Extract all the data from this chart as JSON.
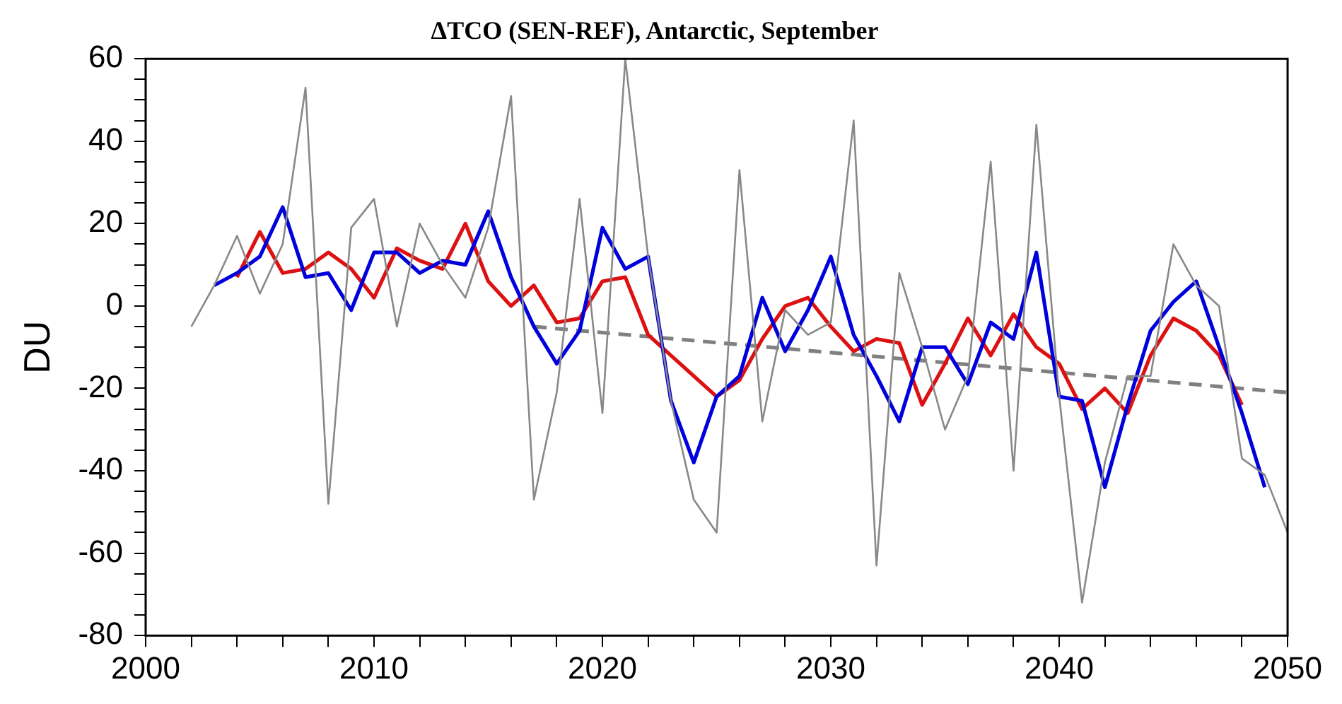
{
  "chart_data": {
    "type": "line",
    "title": "ΔTCO (SEN-REF), Antarctic, September",
    "ylabel": "DU",
    "xlim": [
      2000,
      2050
    ],
    "xticks": [
      2000,
      {
        "value": 2002,
        "label": null
      },
      {
        "value": 2004,
        "label": null
      },
      {
        "value": 2006,
        "label": null
      },
      {
        "value": 2008,
        "label": null
      },
      2010,
      {
        "value": 2012,
        "label": null
      },
      {
        "value": 2014,
        "label": null
      },
      {
        "value": 2016,
        "label": null
      },
      {
        "value": 2018,
        "label": null
      },
      2020,
      {
        "value": 2022,
        "label": null
      },
      {
        "value": 2024,
        "label": null
      },
      {
        "value": 2026,
        "label": null
      },
      {
        "value": 2028,
        "label": null
      },
      2030,
      {
        "value": 2032,
        "label": null
      },
      {
        "value": 2034,
        "label": null
      },
      {
        "value": 2036,
        "label": null
      },
      {
        "value": 2038,
        "label": null
      },
      2040,
      {
        "value": 2042,
        "label": null
      },
      {
        "value": 2044,
        "label": null
      },
      {
        "value": 2046,
        "label": null
      },
      {
        "value": 2048,
        "label": null
      },
      2050
    ],
    "ylim": [
      -80,
      60
    ],
    "yticks": [
      -80,
      {
        "value": -75,
        "label": null
      },
      {
        "value": -70,
        "label": null
      },
      {
        "value": -65,
        "label": null
      },
      -60,
      {
        "value": -55,
        "label": null
      },
      {
        "value": -50,
        "label": null
      },
      {
        "value": -45,
        "label": null
      },
      -40,
      {
        "value": -35,
        "label": null
      },
      {
        "value": -30,
        "label": null
      },
      {
        "value": -25,
        "label": null
      },
      -20,
      {
        "value": -15,
        "label": null
      },
      {
        "value": -10,
        "label": null
      },
      {
        "value": -5,
        "label": null
      },
      0,
      {
        "value": 5,
        "label": null
      },
      {
        "value": 10,
        "label": null
      },
      {
        "value": 15,
        "label": null
      },
      20,
      {
        "value": 25,
        "label": null
      },
      {
        "value": 30,
        "label": null
      },
      {
        "value": 35,
        "label": null
      },
      40,
      {
        "value": 45,
        "label": null
      },
      {
        "value": 50,
        "label": null
      },
      {
        "value": 55,
        "label": null
      },
      60
    ],
    "grid": false,
    "legend": false,
    "marker": "none",
    "series": [
      {
        "color": "#888888",
        "x": [
          2002,
          2003,
          2004,
          2005,
          2006,
          2007,
          2008,
          2009,
          2010,
          2011,
          2012,
          2013,
          2014,
          2015,
          2016,
          2017,
          2018,
          2019,
          2020,
          2021,
          2022,
          2023,
          2024,
          2025,
          2026,
          2027,
          2028,
          2029,
          2030,
          2031,
          2032,
          2033,
          2034,
          2035,
          2036,
          2037,
          2038,
          2039,
          2040,
          2041,
          2042,
          2043,
          2044,
          2045,
          2046,
          2047,
          2048,
          2049,
          2050
        ],
        "values": [
          -5,
          5,
          17,
          3,
          15,
          53,
          -48,
          19,
          26,
          -5,
          20,
          10,
          2,
          19,
          51,
          -47,
          -21,
          26,
          -26,
          60,
          12,
          -23,
          -47,
          -55,
          33,
          -28,
          -1,
          -7,
          -4,
          45,
          -63,
          8,
          -10,
          -30,
          -17,
          35,
          -40,
          44,
          -22,
          -72,
          -38,
          -17,
          -17,
          15,
          5,
          0,
          -37,
          -41,
          -55
        ]
      },
      {
        "color": "#0000dd",
        "x": [
          2003,
          2004,
          2005,
          2006,
          2007,
          2008,
          2009,
          2010,
          2011,
          2012,
          2013,
          2014,
          2015,
          2016,
          2017,
          2018,
          2019,
          2020,
          2021,
          2022,
          2023,
          2024,
          2025,
          2026,
          2027,
          2028,
          2029,
          2030,
          2031,
          2032,
          2033,
          2034,
          2035,
          2036,
          2037,
          2038,
          2039,
          2040,
          2041,
          2042,
          2043,
          2044,
          2045,
          2046,
          2047,
          2048,
          2049
        ],
        "values": [
          5,
          8,
          12,
          24,
          7,
          8,
          -1,
          13,
          13,
          8,
          11,
          10,
          23,
          7,
          -5,
          -14,
          -6,
          19,
          9,
          12,
          -23,
          -38,
          -22,
          -17,
          2,
          -11,
          -1,
          12,
          -7,
          -17,
          -28,
          -10,
          -10,
          -19,
          -4,
          -8,
          13,
          -22,
          -23,
          -44,
          -24,
          -6,
          1,
          6,
          -10,
          -26,
          -44
        ]
      },
      {
        "color": "#dd1111",
        "x": [
          2004,
          2005,
          2006,
          2007,
          2008,
          2009,
          2010,
          2011,
          2012,
          2013,
          2014,
          2015,
          2016,
          2017,
          2018,
          2019,
          2020,
          2021,
          2022,
          2023,
          2024,
          2025,
          2026,
          2027,
          2028,
          2029,
          2030,
          2031,
          2032,
          2033,
          2034,
          2035,
          2036,
          2037,
          2038,
          2039,
          2040,
          2041,
          2042,
          2043,
          2044,
          2045,
          2046,
          2047,
          2048
        ],
        "values": [
          7,
          18,
          8,
          9,
          13,
          9,
          2,
          14,
          11,
          9,
          20,
          6,
          0,
          5,
          -4,
          -3,
          6,
          7,
          -7,
          -12,
          -17,
          -22,
          -18,
          -8,
          0,
          2,
          -5,
          -11,
          -8,
          -9,
          -24,
          -14,
          -3,
          -12,
          -2,
          -10,
          -14,
          -25,
          -20,
          -26,
          -12,
          -3,
          -6,
          -12,
          -24
        ]
      },
      {
        "color": "#808080",
        "line_style": "dashed",
        "x": [
          2017,
          2050
        ],
        "values": [
          -5,
          -21
        ]
      }
    ]
  }
}
